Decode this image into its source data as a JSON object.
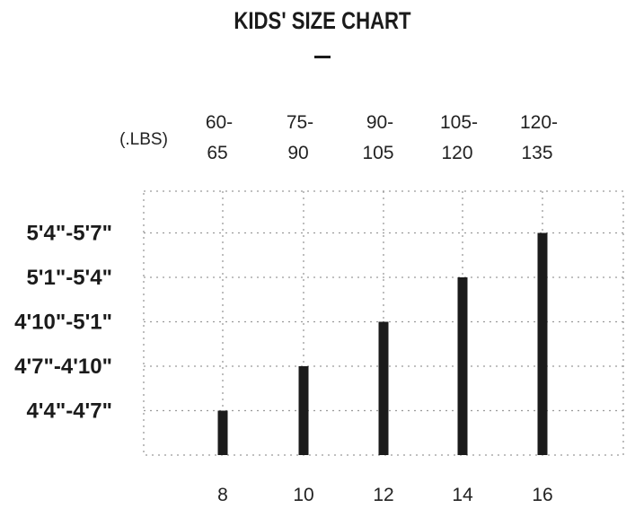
{
  "chart_data": {
    "type": "bar",
    "title": "KIDS' SIZE CHART",
    "weight_unit_label": "(.LBS)",
    "weight_ranges": [
      [
        "60-",
        "65"
      ],
      [
        "75-",
        "90"
      ],
      [
        "90-",
        "105"
      ],
      [
        "105-",
        "120"
      ],
      [
        "120-",
        "135"
      ]
    ],
    "categories": [
      "8",
      "10",
      "12",
      "14",
      "16"
    ],
    "y_categories": [
      "4'4\"-4'7\"",
      "4'7\"-4'10\"",
      "4'10\"-5'1\"",
      "5'1\"-5'4\"",
      "5'4\"-5'7\""
    ],
    "values": [
      1,
      2,
      3,
      4,
      5
    ],
    "ylim": [
      0,
      5.9
    ],
    "bar_color": "#1b1b1b",
    "grid": true,
    "grid_style": "dotted"
  }
}
